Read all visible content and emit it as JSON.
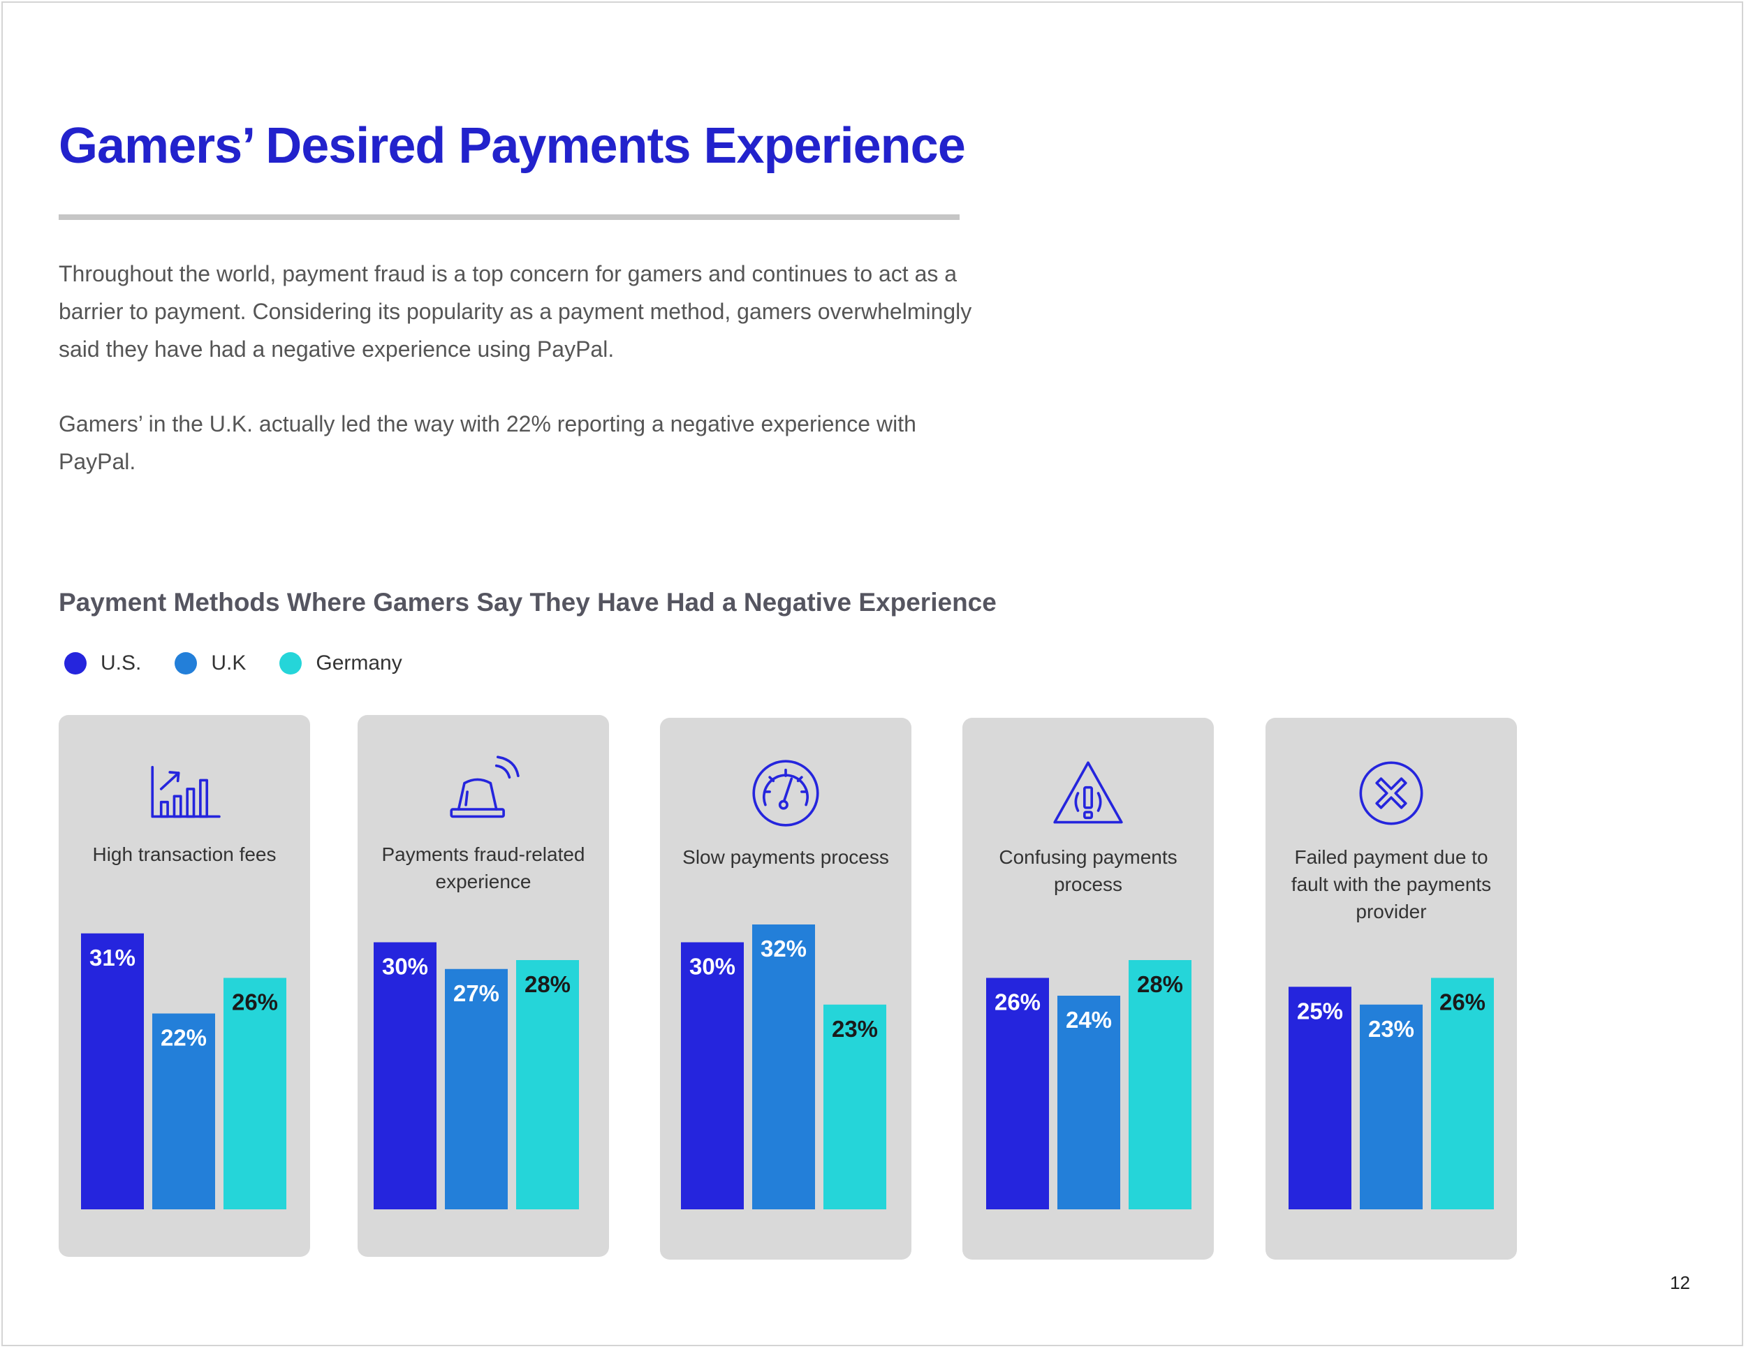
{
  "page": {
    "title": "Gamers’ Desired Payments Experience",
    "paragraphs": [
      "Throughout the world, payment fraud is a top concern for gamers and continues to act as a barrier to payment. Considering its popularity as a payment method, gamers overwhelmingly said they have had a negative experience using PayPal.",
      "Gamers’ in the U.K. actually led the way with 22% reporting a negative experience with PayPal."
    ],
    "page_number": "12"
  },
  "chart_data": {
    "type": "bar",
    "title": "Payment Methods Where Gamers Say They Have Had a Negative Experience",
    "categories": [
      "High transaction fees",
      "Payments fraud-related experience",
      "Slow payments process",
      "Confusing payments process",
      "Failed payment due to fault with the payments provider"
    ],
    "category_icons": [
      "bar-chart-growth-icon",
      "alarm-siren-icon",
      "speedometer-icon",
      "warning-triangle-icon",
      "x-circle-icon"
    ],
    "series": [
      {
        "name": "U.S.",
        "color": "#2525dd",
        "values": [
          31,
          30,
          30,
          26,
          25
        ]
      },
      {
        "name": "U.K",
        "color": "#237fd9",
        "values": [
          22,
          27,
          32,
          24,
          23
        ]
      },
      {
        "name": "Germany",
        "color": "#25d5d9",
        "values": [
          26,
          28,
          23,
          28,
          26
        ]
      }
    ],
    "value_suffix": "%",
    "legend_position": "top-left",
    "grid": false,
    "ylim": [
      0,
      32
    ]
  }
}
